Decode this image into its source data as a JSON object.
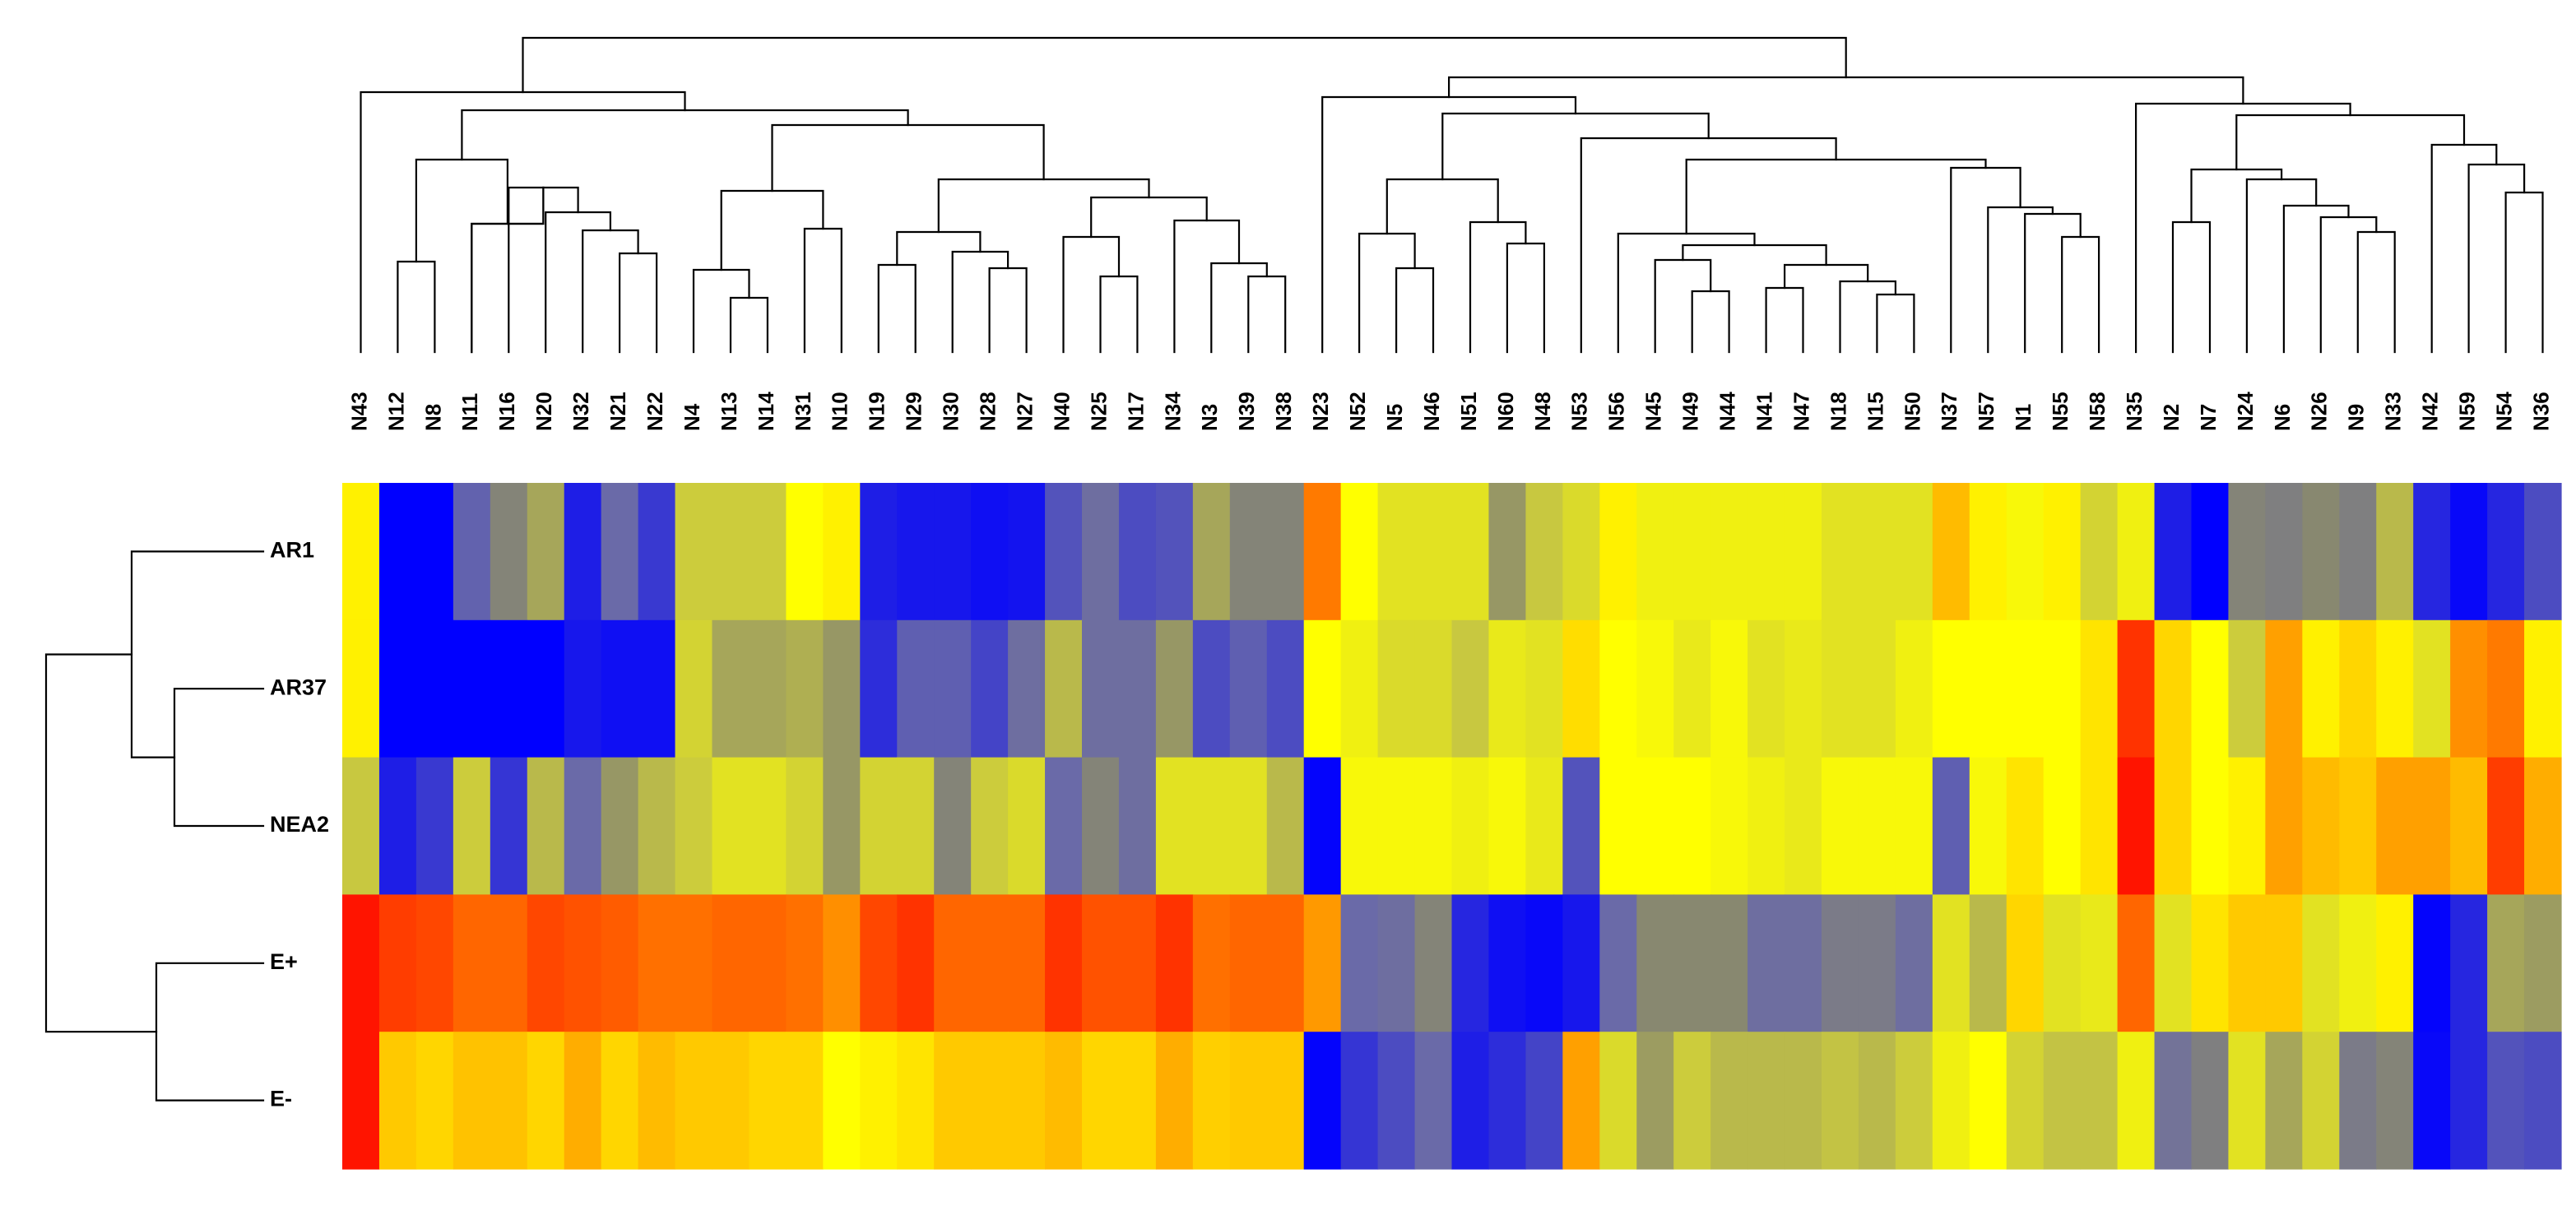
{
  "chart_data": {
    "type": "heatmap",
    "title": "",
    "xlabel": "",
    "ylabel": "",
    "legend": "none",
    "grid": false,
    "color_scale": {
      "low": "#0000ff",
      "mid_low": "#808080",
      "mid": "#c8c840",
      "mid_high": "#ffff00",
      "high": "#ff0000",
      "stops": [
        {
          "v": 0.0,
          "c": "#0000ff"
        },
        {
          "v": 0.28,
          "c": "#6a6aa8"
        },
        {
          "v": 0.42,
          "c": "#888870"
        },
        {
          "v": 0.55,
          "c": "#c8c840"
        },
        {
          "v": 0.7,
          "c": "#ffff00"
        },
        {
          "v": 0.85,
          "c": "#ff9900"
        },
        {
          "v": 1.0,
          "c": "#ff0000"
        }
      ]
    },
    "column_labels": [
      "N43",
      "N12",
      "N8",
      "N11",
      "N16",
      "N20",
      "N32",
      "N21",
      "N22",
      "N4",
      "N13",
      "N14",
      "N31",
      "N10",
      "N19",
      "N29",
      "N30",
      "N28",
      "N27",
      "N40",
      "N25",
      "N17",
      "N34",
      "N3",
      "N39",
      "N38",
      "N23",
      "N52",
      "N5",
      "N46",
      "N51",
      "N60",
      "N48",
      "N53",
      "N56",
      "N45",
      "N49",
      "N44",
      "N41",
      "N47",
      "N18",
      "N15",
      "N50",
      "N37",
      "N57",
      "N1",
      "N55",
      "N58",
      "N35",
      "N2",
      "N7",
      "N24",
      "N6",
      "N26",
      "N9",
      "N33",
      "N42",
      "N59",
      "N54",
      "N36"
    ],
    "row_labels": [
      "AR1",
      "AR37",
      "NEA2",
      "E+",
      "E-"
    ],
    "values": [
      [
        0.72,
        0.0,
        0.0,
        0.26,
        0.4,
        0.48,
        0.08,
        0.28,
        0.15,
        0.56,
        0.56,
        0.56,
        0.7,
        0.72,
        0.08,
        0.06,
        0.06,
        0.04,
        0.05,
        0.22,
        0.3,
        0.2,
        0.22,
        0.48,
        0.4,
        0.4,
        0.88,
        0.7,
        0.62,
        0.62,
        0.62,
        0.45,
        0.55,
        0.6,
        0.72,
        0.66,
        0.66,
        0.66,
        0.66,
        0.66,
        0.62,
        0.62,
        0.62,
        0.8,
        0.72,
        0.68,
        0.72,
        0.58,
        0.66,
        0.08,
        0.0,
        0.4,
        0.38,
        0.42,
        0.38,
        0.52,
        0.1,
        0.02,
        0.1,
        0.2
      ],
      [
        0.72,
        0.0,
        0.0,
        0.0,
        0.0,
        0.0,
        0.06,
        0.04,
        0.04,
        0.58,
        0.48,
        0.48,
        0.5,
        0.45,
        0.12,
        0.25,
        0.25,
        0.18,
        0.3,
        0.52,
        0.3,
        0.3,
        0.45,
        0.2,
        0.25,
        0.2,
        0.7,
        0.66,
        0.6,
        0.6,
        0.55,
        0.64,
        0.62,
        0.75,
        0.7,
        0.68,
        0.64,
        0.68,
        0.62,
        0.64,
        0.62,
        0.62,
        0.66,
        0.7,
        0.7,
        0.7,
        0.7,
        0.74,
        0.95,
        0.76,
        0.7,
        0.56,
        0.84,
        0.72,
        0.76,
        0.72,
        0.62,
        0.86,
        0.88,
        0.72
      ],
      [
        0.55,
        0.08,
        0.15,
        0.56,
        0.14,
        0.52,
        0.28,
        0.45,
        0.52,
        0.56,
        0.62,
        0.62,
        0.58,
        0.45,
        0.58,
        0.58,
        0.4,
        0.56,
        0.6,
        0.28,
        0.4,
        0.3,
        0.62,
        0.62,
        0.62,
        0.52,
        0.01,
        0.68,
        0.68,
        0.68,
        0.66,
        0.68,
        0.64,
        0.22,
        0.7,
        0.7,
        0.7,
        0.68,
        0.66,
        0.64,
        0.68,
        0.68,
        0.68,
        0.25,
        0.68,
        0.74,
        0.7,
        0.74,
        0.98,
        0.76,
        0.7,
        0.72,
        0.84,
        0.8,
        0.78,
        0.84,
        0.84,
        0.8,
        0.94,
        0.82
      ],
      [
        0.98,
        0.94,
        0.93,
        0.9,
        0.9,
        0.93,
        0.92,
        0.91,
        0.89,
        0.89,
        0.9,
        0.9,
        0.89,
        0.86,
        0.93,
        0.95,
        0.9,
        0.9,
        0.9,
        0.95,
        0.92,
        0.92,
        0.95,
        0.89,
        0.9,
        0.9,
        0.85,
        0.28,
        0.3,
        0.4,
        0.1,
        0.04,
        0.02,
        0.06,
        0.28,
        0.42,
        0.42,
        0.42,
        0.3,
        0.3,
        0.36,
        0.36,
        0.3,
        0.62,
        0.52,
        0.76,
        0.62,
        0.64,
        0.9,
        0.62,
        0.74,
        0.78,
        0.78,
        0.62,
        0.66,
        0.72,
        0.01,
        0.1,
        0.48,
        0.46
      ],
      [
        0.98,
        0.78,
        0.76,
        0.79,
        0.79,
        0.76,
        0.82,
        0.76,
        0.8,
        0.78,
        0.78,
        0.76,
        0.76,
        0.7,
        0.72,
        0.74,
        0.78,
        0.78,
        0.78,
        0.8,
        0.76,
        0.76,
        0.82,
        0.77,
        0.78,
        0.78,
        0.01,
        0.14,
        0.2,
        0.28,
        0.08,
        0.12,
        0.18,
        0.84,
        0.6,
        0.46,
        0.56,
        0.52,
        0.52,
        0.52,
        0.54,
        0.52,
        0.56,
        0.66,
        0.7,
        0.58,
        0.54,
        0.54,
        0.66,
        0.32,
        0.38,
        0.62,
        0.48,
        0.58,
        0.36,
        0.4,
        0.02,
        0.1,
        0.22,
        0.2
      ]
    ]
  }
}
